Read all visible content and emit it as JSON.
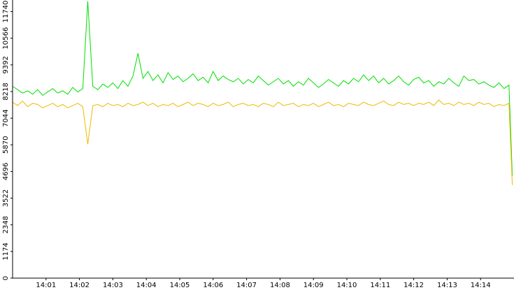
{
  "chart_data": {
    "type": "line",
    "x": [
      0,
      0.15,
      0.3,
      0.45,
      0.6,
      0.75,
      0.9,
      1.05,
      1.2,
      1.35,
      1.5,
      1.65,
      1.8,
      1.95,
      2.1,
      2.25,
      2.4,
      2.55,
      2.7,
      2.85,
      3,
      3.15,
      3.3,
      3.45,
      3.6,
      3.75,
      3.9,
      4.05,
      4.2,
      4.35,
      4.5,
      4.65,
      4.8,
      4.95,
      5.1,
      5.25,
      5.4,
      5.55,
      5.7,
      5.85,
      6,
      6.15,
      6.3,
      6.45,
      6.6,
      6.75,
      6.9,
      7.05,
      7.2,
      7.35,
      7.5,
      7.65,
      7.8,
      7.95,
      8.1,
      8.25,
      8.4,
      8.55,
      8.7,
      8.85,
      9,
      9.15,
      9.3,
      9.45,
      9.6,
      9.75,
      9.9,
      10.05,
      10.2,
      10.35,
      10.5,
      10.65,
      10.8,
      10.95,
      11.1,
      11.25,
      11.4,
      11.55,
      11.7,
      11.85,
      12,
      12.15,
      12.3,
      12.45,
      12.6,
      12.75,
      12.9,
      13.05,
      13.2,
      13.35,
      13.5,
      13.65,
      13.8,
      13.95,
      14.1,
      14.25,
      14.4,
      14.55,
      14.7,
      14.85,
      14.95
    ],
    "series": [
      {
        "color": "#00e000",
        "values": [
          8450,
          8300,
          8150,
          8250,
          8100,
          8300,
          8050,
          8200,
          8350,
          8150,
          8250,
          8100,
          8400,
          8200,
          8350,
          12200,
          8450,
          8300,
          8550,
          8400,
          8600,
          8350,
          8700,
          8450,
          8900,
          9900,
          8800,
          9100,
          8700,
          8950,
          8600,
          9050,
          8750,
          8900,
          8650,
          8800,
          9000,
          8700,
          8850,
          8600,
          9100,
          8700,
          8900,
          8750,
          8650,
          8800,
          8550,
          8750,
          8600,
          8900,
          8700,
          8500,
          8650,
          8800,
          8550,
          8700,
          8450,
          8650,
          8500,
          8800,
          8600,
          8400,
          8550,
          8750,
          8600,
          8450,
          8700,
          8550,
          8800,
          8650,
          8950,
          8700,
          8900,
          8600,
          8800,
          8550,
          8700,
          8900,
          8650,
          8500,
          8750,
          8850,
          8600,
          8700,
          8450,
          8650,
          8550,
          8800,
          8600,
          8450,
          8900,
          8700,
          8750,
          8550,
          8650,
          8500,
          8400,
          8600,
          8350,
          8500,
          4500
        ]
      },
      {
        "color": "#f0b800",
        "values": [
          7750,
          7600,
          7800,
          7550,
          7700,
          7650,
          7500,
          7600,
          7700,
          7550,
          7650,
          7500,
          7600,
          7700,
          7550,
          5900,
          7600,
          7650,
          7550,
          7700,
          7600,
          7650,
          7550,
          7700,
          7600,
          7650,
          7750,
          7600,
          7700,
          7550,
          7650,
          7600,
          7700,
          7550,
          7650,
          7750,
          7600,
          7700,
          7650,
          7550,
          7700,
          7600,
          7650,
          7750,
          7550,
          7650,
          7700,
          7600,
          7650,
          7550,
          7700,
          7650,
          7550,
          7750,
          7600,
          7650,
          7700,
          7550,
          7650,
          7600,
          7700,
          7550,
          7650,
          7750,
          7600,
          7650,
          7550,
          7700,
          7650,
          7600,
          7750,
          7650,
          7600,
          7700,
          7800,
          7650,
          7600,
          7750,
          7650,
          7700,
          7600,
          7700,
          7650,
          7750,
          7600,
          7850,
          7650,
          7700,
          7600,
          7750,
          7650,
          7700,
          7600,
          7750,
          7650,
          7700,
          7550,
          7650,
          7600,
          7700,
          4100
        ]
      }
    ],
    "xlim": [
      0,
      15
    ],
    "xticks": [
      {
        "value": 1,
        "label": "14:01"
      },
      {
        "value": 2,
        "label": "14:02"
      },
      {
        "value": 3,
        "label": "14:03"
      },
      {
        "value": 4,
        "label": "14:04"
      },
      {
        "value": 5,
        "label": "14:05"
      },
      {
        "value": 6,
        "label": "14:06"
      },
      {
        "value": 7,
        "label": "14:07"
      },
      {
        "value": 8,
        "label": "14:08"
      },
      {
        "value": 9,
        "label": "14:09"
      },
      {
        "value": 10,
        "label": "14:10"
      },
      {
        "value": 11,
        "label": "14:11"
      },
      {
        "value": 12,
        "label": "14:12"
      },
      {
        "value": 13,
        "label": "14:13"
      },
      {
        "value": 14,
        "label": "14:14"
      }
    ],
    "ylim": [
      0,
      12250
    ],
    "yticks": [
      0,
      1174,
      2348,
      3522,
      4696,
      5870,
      7044,
      8218,
      9392,
      10566,
      11740
    ]
  }
}
